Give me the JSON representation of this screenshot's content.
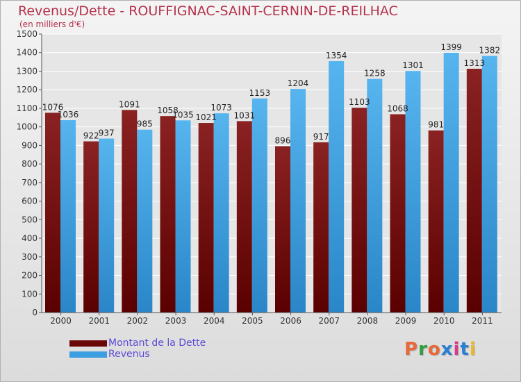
{
  "title": "Revenus/Dette - ROUFFIGNAC-SAINT-CERNIN-DE-REILHAC",
  "subtitle": "(en milliers d'€)",
  "logo": {
    "text": "Proxiti",
    "colors": [
      "#e8683a",
      "#2e9e3e",
      "#e8683a",
      "#2a7fd0",
      "#d63a8c",
      "#2a7fd0",
      "#e8b82a"
    ]
  },
  "colors": {
    "dette": "#7a1414",
    "revenus": "#3a9ee0",
    "title": "#b5304a",
    "legend_text": "#5a4ad6"
  },
  "chart_data": {
    "type": "bar",
    "title": "Revenus/Dette - ROUFFIGNAC-SAINT-CERNIN-DE-REILHAC",
    "ylabel": "(en milliers d'€)",
    "xlabel": "",
    "ylim": [
      0,
      1500
    ],
    "yticks": [
      0,
      100,
      200,
      300,
      400,
      500,
      600,
      700,
      800,
      900,
      1000,
      1100,
      1200,
      1300,
      1400,
      1500
    ],
    "grid": true,
    "categories": [
      "2000",
      "2001",
      "2002",
      "2003",
      "2004",
      "2005",
      "2006",
      "2007",
      "2008",
      "2009",
      "2010",
      "2011"
    ],
    "series": [
      {
        "name": "Montant de la Dette",
        "color": "#7a1414",
        "values": [
          1076,
          922,
          1091,
          1058,
          1021,
          1031,
          896,
          917,
          1103,
          1068,
          981,
          1313
        ]
      },
      {
        "name": "Revenus",
        "color": "#3a9ee0",
        "values": [
          1036,
          937,
          985,
          1035,
          1073,
          1153,
          1204,
          1354,
          1258,
          1301,
          1399,
          1382
        ]
      }
    ],
    "legend_position": "bottom-left"
  }
}
